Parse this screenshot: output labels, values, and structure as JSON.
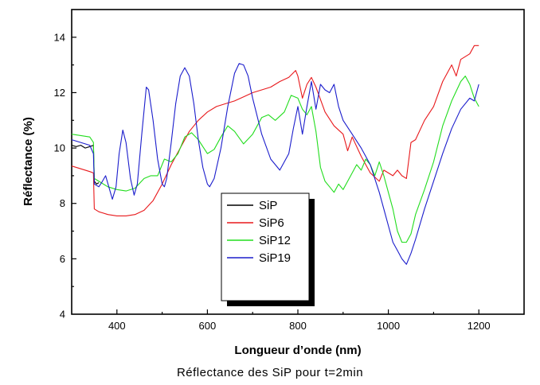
{
  "caption": "Réflectance des SiP pour t=2min",
  "chart_data": {
    "type": "line",
    "xlabel": "Longueur d’onde (nm)",
    "ylabel": "Réflectance (%)",
    "xlim": [
      300,
      1300
    ],
    "ylim": [
      4,
      15
    ],
    "xticks": [
      400,
      600,
      800,
      1000,
      1200
    ],
    "yticks": [
      4,
      6,
      8,
      10,
      12,
      14
    ],
    "grid": false,
    "legend_position": "center",
    "series": [
      {
        "name": "SiP",
        "color": "#000000",
        "points": [
          [
            300,
            10.1
          ],
          [
            310,
            10.05
          ],
          [
            320,
            10.1
          ],
          [
            330,
            10.0
          ],
          [
            340,
            10.05
          ],
          [
            348,
            10.1
          ],
          [
            350,
            8.8
          ],
          [
            355,
            8.7
          ],
          [
            360,
            8.75
          ]
        ]
      },
      {
        "name": "SiP6",
        "color": "#e8191c",
        "points": [
          [
            300,
            9.35
          ],
          [
            320,
            9.25
          ],
          [
            340,
            9.15
          ],
          [
            348,
            9.1
          ],
          [
            350,
            7.8
          ],
          [
            360,
            7.7
          ],
          [
            380,
            7.6
          ],
          [
            400,
            7.55
          ],
          [
            420,
            7.55
          ],
          [
            440,
            7.6
          ],
          [
            460,
            7.75
          ],
          [
            480,
            8.1
          ],
          [
            500,
            8.7
          ],
          [
            520,
            9.4
          ],
          [
            540,
            10.0
          ],
          [
            560,
            10.6
          ],
          [
            580,
            11.0
          ],
          [
            600,
            11.3
          ],
          [
            620,
            11.5
          ],
          [
            640,
            11.6
          ],
          [
            660,
            11.7
          ],
          [
            680,
            11.85
          ],
          [
            700,
            12.0
          ],
          [
            720,
            12.1
          ],
          [
            740,
            12.2
          ],
          [
            760,
            12.4
          ],
          [
            780,
            12.55
          ],
          [
            795,
            12.8
          ],
          [
            800,
            12.6
          ],
          [
            810,
            11.8
          ],
          [
            820,
            12.3
          ],
          [
            830,
            12.55
          ],
          [
            840,
            12.2
          ],
          [
            860,
            11.3
          ],
          [
            880,
            10.8
          ],
          [
            900,
            10.5
          ],
          [
            910,
            9.9
          ],
          [
            920,
            10.4
          ],
          [
            940,
            9.7
          ],
          [
            960,
            9.1
          ],
          [
            980,
            8.8
          ],
          [
            990,
            9.2
          ],
          [
            1000,
            9.1
          ],
          [
            1010,
            9.0
          ],
          [
            1020,
            9.2
          ],
          [
            1030,
            9.0
          ],
          [
            1040,
            8.9
          ],
          [
            1050,
            10.2
          ],
          [
            1060,
            10.3
          ],
          [
            1080,
            11.0
          ],
          [
            1100,
            11.5
          ],
          [
            1120,
            12.4
          ],
          [
            1140,
            13.0
          ],
          [
            1150,
            12.6
          ],
          [
            1160,
            13.2
          ],
          [
            1180,
            13.4
          ],
          [
            1190,
            13.7
          ],
          [
            1200,
            13.7
          ]
        ]
      },
      {
        "name": "SiP12",
        "color": "#22dd1e",
        "points": [
          [
            300,
            10.5
          ],
          [
            320,
            10.45
          ],
          [
            340,
            10.4
          ],
          [
            348,
            10.2
          ],
          [
            350,
            8.9
          ],
          [
            360,
            8.8
          ],
          [
            380,
            8.6
          ],
          [
            400,
            8.5
          ],
          [
            420,
            8.45
          ],
          [
            440,
            8.55
          ],
          [
            460,
            8.9
          ],
          [
            475,
            9.0
          ],
          [
            490,
            9.0
          ],
          [
            505,
            9.6
          ],
          [
            520,
            9.5
          ],
          [
            535,
            9.8
          ],
          [
            550,
            10.4
          ],
          [
            565,
            10.55
          ],
          [
            580,
            10.3
          ],
          [
            600,
            9.8
          ],
          [
            615,
            9.95
          ],
          [
            630,
            10.4
          ],
          [
            645,
            10.8
          ],
          [
            660,
            10.6
          ],
          [
            680,
            10.15
          ],
          [
            700,
            10.5
          ],
          [
            720,
            11.1
          ],
          [
            735,
            11.2
          ],
          [
            750,
            11.0
          ],
          [
            770,
            11.3
          ],
          [
            785,
            11.9
          ],
          [
            800,
            11.8
          ],
          [
            810,
            11.4
          ],
          [
            820,
            11.2
          ],
          [
            830,
            11.5
          ],
          [
            840,
            10.6
          ],
          [
            850,
            9.3
          ],
          [
            860,
            8.8
          ],
          [
            870,
            8.6
          ],
          [
            880,
            8.4
          ],
          [
            890,
            8.7
          ],
          [
            900,
            8.5
          ],
          [
            910,
            8.8
          ],
          [
            920,
            9.1
          ],
          [
            930,
            9.4
          ],
          [
            940,
            9.2
          ],
          [
            950,
            9.6
          ],
          [
            960,
            9.4
          ],
          [
            970,
            9.0
          ],
          [
            980,
            9.5
          ],
          [
            990,
            9.0
          ],
          [
            1000,
            8.4
          ],
          [
            1010,
            7.8
          ],
          [
            1020,
            7.0
          ],
          [
            1030,
            6.6
          ],
          [
            1040,
            6.6
          ],
          [
            1050,
            6.9
          ],
          [
            1060,
            7.6
          ],
          [
            1080,
            8.5
          ],
          [
            1100,
            9.5
          ],
          [
            1120,
            10.8
          ],
          [
            1140,
            11.7
          ],
          [
            1160,
            12.4
          ],
          [
            1170,
            12.6
          ],
          [
            1180,
            12.3
          ],
          [
            1190,
            11.8
          ],
          [
            1200,
            11.5
          ]
        ]
      },
      {
        "name": "SiP19",
        "color": "#1b1dcc",
        "points": [
          [
            300,
            10.3
          ],
          [
            320,
            10.2
          ],
          [
            340,
            10.1
          ],
          [
            348,
            9.8
          ],
          [
            350,
            8.7
          ],
          [
            360,
            8.6
          ],
          [
            368,
            8.8
          ],
          [
            375,
            9.0
          ],
          [
            382,
            8.6
          ],
          [
            390,
            8.15
          ],
          [
            398,
            8.6
          ],
          [
            405,
            9.8
          ],
          [
            413,
            10.65
          ],
          [
            420,
            10.2
          ],
          [
            430,
            8.9
          ],
          [
            438,
            8.3
          ],
          [
            445,
            8.7
          ],
          [
            455,
            10.5
          ],
          [
            465,
            12.2
          ],
          [
            470,
            12.1
          ],
          [
            480,
            11.0
          ],
          [
            490,
            9.6
          ],
          [
            500,
            8.7
          ],
          [
            505,
            8.6
          ],
          [
            510,
            8.9
          ],
          [
            520,
            10.2
          ],
          [
            530,
            11.6
          ],
          [
            540,
            12.6
          ],
          [
            550,
            12.9
          ],
          [
            560,
            12.6
          ],
          [
            570,
            11.6
          ],
          [
            580,
            10.3
          ],
          [
            590,
            9.3
          ],
          [
            600,
            8.7
          ],
          [
            605,
            8.6
          ],
          [
            615,
            8.9
          ],
          [
            630,
            10.0
          ],
          [
            645,
            11.5
          ],
          [
            660,
            12.7
          ],
          [
            670,
            13.05
          ],
          [
            680,
            13.0
          ],
          [
            690,
            12.6
          ],
          [
            700,
            11.8
          ],
          [
            720,
            10.5
          ],
          [
            740,
            9.6
          ],
          [
            760,
            9.2
          ],
          [
            780,
            9.8
          ],
          [
            790,
            10.7
          ],
          [
            800,
            11.5
          ],
          [
            810,
            10.5
          ],
          [
            820,
            11.5
          ],
          [
            830,
            12.4
          ],
          [
            840,
            11.4
          ],
          [
            850,
            12.3
          ],
          [
            860,
            12.1
          ],
          [
            870,
            12.0
          ],
          [
            880,
            12.3
          ],
          [
            890,
            11.5
          ],
          [
            900,
            11.0
          ],
          [
            920,
            10.5
          ],
          [
            940,
            10.0
          ],
          [
            960,
            9.4
          ],
          [
            980,
            8.4
          ],
          [
            990,
            7.8
          ],
          [
            1000,
            7.2
          ],
          [
            1010,
            6.6
          ],
          [
            1020,
            6.3
          ],
          [
            1030,
            6.0
          ],
          [
            1040,
            5.8
          ],
          [
            1050,
            6.2
          ],
          [
            1060,
            6.7
          ],
          [
            1080,
            7.8
          ],
          [
            1100,
            8.8
          ],
          [
            1120,
            9.8
          ],
          [
            1140,
            10.7
          ],
          [
            1160,
            11.4
          ],
          [
            1180,
            11.8
          ],
          [
            1190,
            11.7
          ],
          [
            1200,
            12.3
          ]
        ]
      }
    ]
  }
}
